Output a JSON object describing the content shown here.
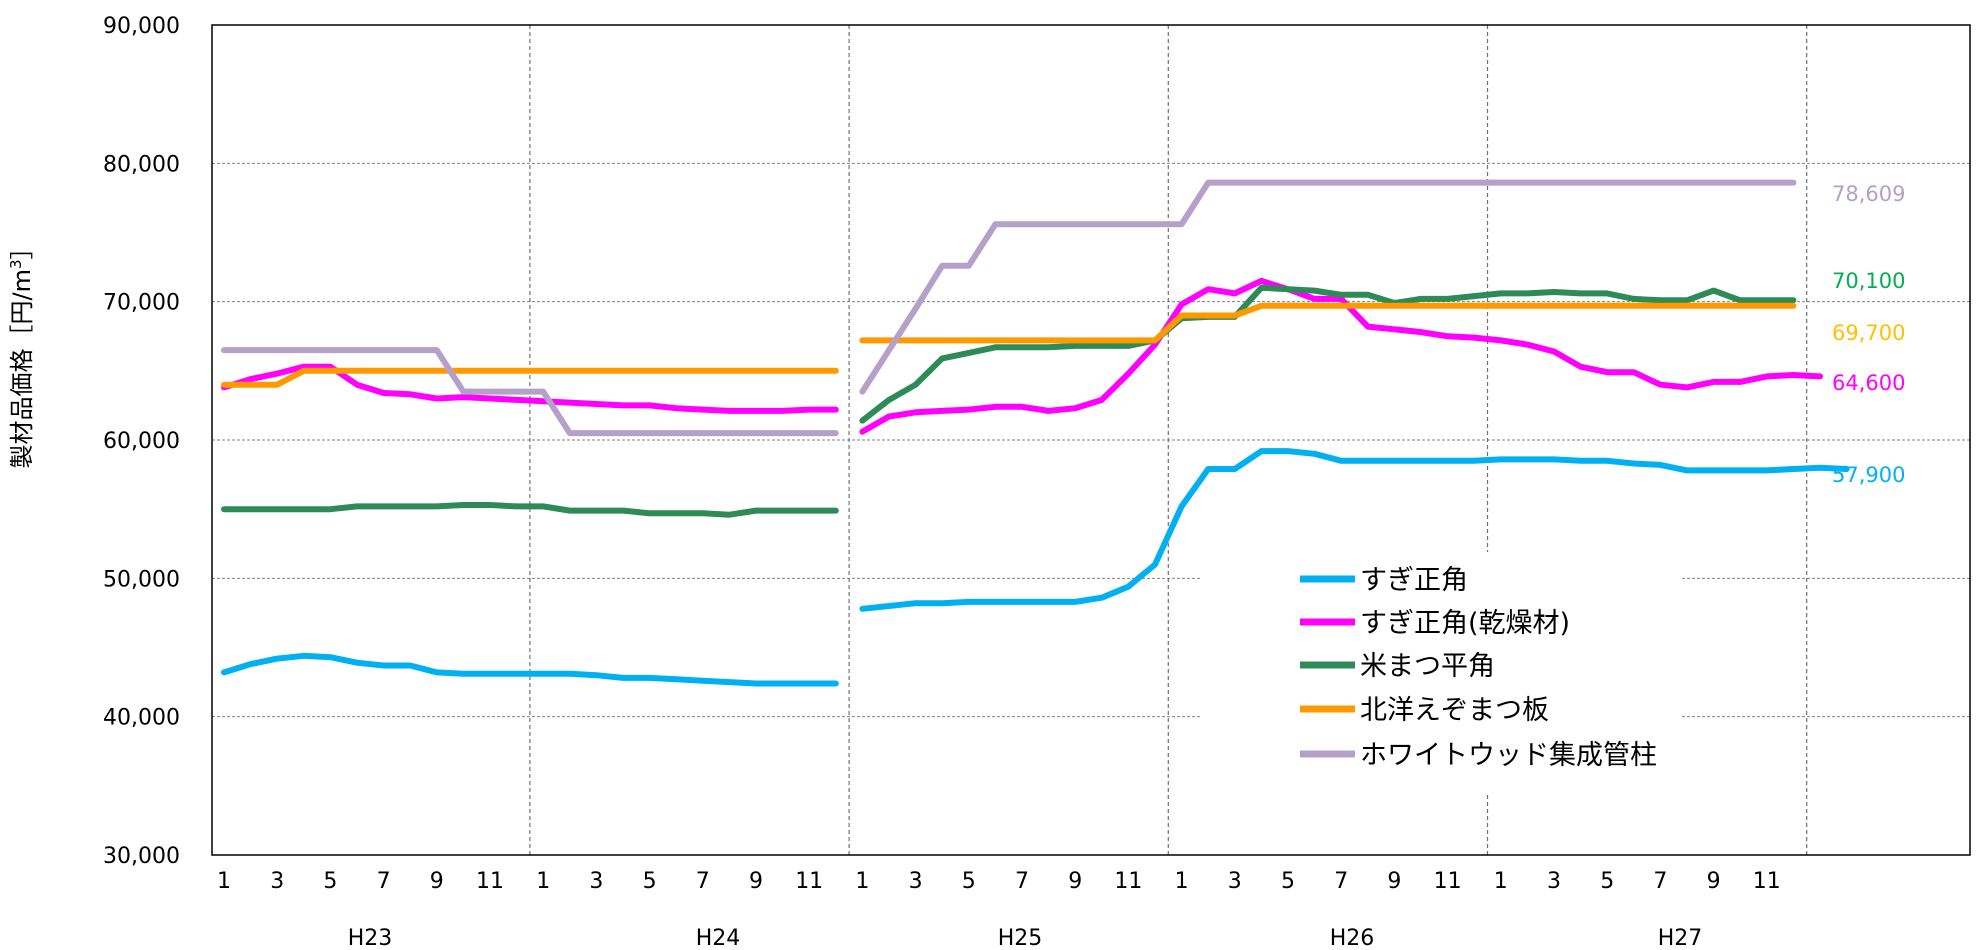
{
  "chart_data": {
    "type": "line",
    "title": "",
    "ylabel": "製材品価格［円/m",
    "ylabel_sup": "3",
    "ylabel_close": "］",
    "ylim": [
      30000,
      90000
    ],
    "y_ticks": [
      30000,
      40000,
      50000,
      60000,
      70000,
      80000,
      90000
    ],
    "y_tick_labels": [
      "30,000",
      "40,000",
      "50,000",
      "60,000",
      "70,000",
      "80,000",
      "90,000"
    ],
    "x_tick_labels": [
      "1",
      "3",
      "5",
      "7",
      "9",
      "11",
      "1",
      "3",
      "5",
      "7",
      "9",
      "11",
      "1",
      "3",
      "5",
      "7",
      "9",
      "11",
      "1",
      "3",
      "5",
      "7",
      "9",
      "11",
      "1",
      "3",
      "5",
      "7",
      "9",
      "11"
    ],
    "year_labels": [
      "H23",
      "H24",
      "H25",
      "H26",
      "H27"
    ],
    "grid": true,
    "legend_position": "center-right",
    "series": [
      {
        "name": "すぎ正角",
        "color": "#00b0f0",
        "segments": [
          [
            43200,
            43800,
            44200,
            44400,
            44300,
            43900,
            43700,
            43700,
            43200,
            43100,
            43100,
            43100,
            43100,
            43100,
            43000,
            42800,
            42800,
            42700,
            42600,
            42500,
            42400,
            42400,
            42400,
            42400
          ],
          [
            47800,
            48000,
            48200,
            48200,
            48300,
            48300,
            48300,
            48300,
            48300,
            48600,
            49400,
            51000,
            55200,
            57900,
            57900,
            59200,
            59200,
            59000,
            58500,
            58500,
            58500,
            58500,
            58500,
            58500,
            58600,
            58600,
            58600,
            58500,
            58500,
            58300,
            58200,
            57800,
            57800,
            57800,
            57800,
            57900,
            58000,
            57900
          ]
        ],
        "end_label": "57,900"
      },
      {
        "name": "すぎ正角(乾燥材)",
        "color": "#ff00ff",
        "segments": [
          [
            63800,
            64400,
            64800,
            65300,
            65300,
            64000,
            63400,
            63300,
            63000,
            63100,
            63000,
            62900,
            62800,
            62700,
            62600,
            62500,
            62500,
            62300,
            62200,
            62100,
            62100,
            62100,
            62200,
            62200
          ],
          [
            60600,
            61700,
            62000,
            62100,
            62200,
            62400,
            62400,
            62100,
            62300,
            62900,
            64800,
            66900,
            69800,
            70900,
            70600,
            71500,
            70900,
            70200,
            70200,
            68200,
            68000,
            67800,
            67500,
            67400,
            67200,
            66900,
            66400,
            65300,
            64900,
            64900,
            64000,
            63800,
            64200,
            64200,
            64600,
            64700,
            64600
          ]
        ],
        "end_label": "64,600"
      },
      {
        "name": "米まつ平角",
        "color": "#2e8b57",
        "segments": [
          [
            55000,
            55000,
            55000,
            55000,
            55000,
            55200,
            55200,
            55200,
            55200,
            55300,
            55300,
            55200,
            55200,
            54900,
            54900,
            54900,
            54700,
            54700,
            54700,
            54600,
            54900,
            54900,
            54900,
            54900
          ],
          [
            61400,
            62900,
            64000,
            65900,
            66300,
            66700,
            66700,
            66700,
            66800,
            66800,
            66800,
            67200,
            68800,
            68900,
            68900,
            71000,
            70900,
            70800,
            70500,
            70500,
            69900,
            70200,
            70200,
            70400,
            70600,
            70600,
            70700,
            70600,
            70600,
            70200,
            70100,
            70100,
            70800,
            70100,
            70100,
            70100
          ]
        ],
        "end_label": "70,100"
      },
      {
        "name": "北洋えぞまつ板",
        "color": "#ff9900",
        "segments": [
          [
            64000,
            64000,
            64000,
            65000,
            65000,
            65000,
            65000,
            65000,
            65000,
            65000,
            65000,
            65000,
            65000,
            65000,
            65000,
            65000,
            65000,
            65000,
            65000,
            65000,
            65000,
            65000,
            65000,
            65000
          ],
          [
            67200,
            67200,
            67200,
            67200,
            67200,
            67200,
            67200,
            67200,
            67200,
            67200,
            67200,
            67200,
            69000,
            69000,
            69000,
            69700,
            69700,
            69700,
            69700,
            69700,
            69700,
            69700,
            69700,
            69700,
            69700,
            69700,
            69700,
            69700,
            69700,
            69700,
            69700,
            69700,
            69700,
            69700,
            69700,
            69700
          ]
        ],
        "end_label": "69,700"
      },
      {
        "name": "ホワイトウッド集成管柱",
        "color": "#b4a0c8",
        "segments": [
          [
            66500,
            66500,
            66500,
            66500,
            66500,
            66500,
            66500,
            66500,
            66500,
            63500,
            63500,
            63500,
            63500,
            60500,
            60500,
            60500,
            60500,
            60500,
            60500,
            60500,
            60500,
            60500,
            60500,
            60500
          ],
          [
            63500,
            66500,
            69500,
            72600,
            72600,
            75600,
            75600,
            75600,
            75600,
            75600,
            75600,
            75600,
            75600,
            78609,
            78609,
            78609,
            78609,
            78609,
            78609,
            78609,
            78609,
            78609,
            78609,
            78609,
            78609,
            78609,
            78609,
            78609,
            78609,
            78609,
            78609,
            78609,
            78609,
            78609,
            78609,
            78609
          ]
        ],
        "end_label": "78,609"
      }
    ]
  },
  "end_label_colors": {
    "white_wood": "#b4a0c8",
    "beimatsu": "#00b050",
    "ezomatsu": "#ffc000",
    "sugi_dry": "#ff00ff",
    "sugi": "#00b0f0"
  }
}
